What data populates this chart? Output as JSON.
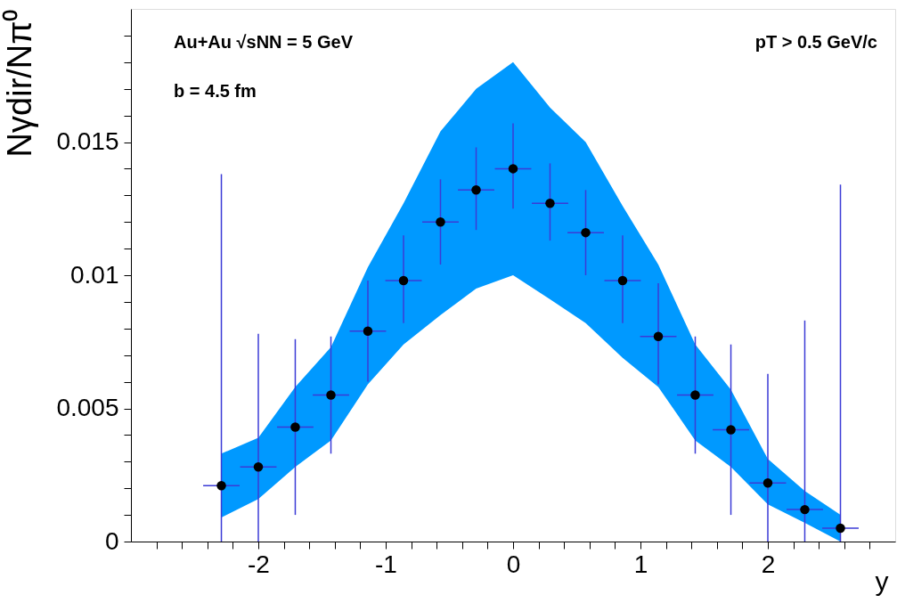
{
  "chart_data": {
    "type": "scatter",
    "xlabel": "y",
    "ylabel": "Nγdir/Nπ⁰",
    "annotations": [
      "Au+Au √sNN = 5 GeV",
      "b = 4.5 fm",
      "pT > 0.5 GeV/c"
    ],
    "x": [
      -2.29,
      -2,
      -1.71,
      -1.43,
      -1.14,
      -0.86,
      -0.57,
      -0.29,
      0,
      0.29,
      0.57,
      0.86,
      1.14,
      1.43,
      1.71,
      2,
      2.29,
      2.57
    ],
    "series": [
      {
        "color": "#000000",
        "lower": [
          0.0009,
          0.0016,
          0.0028,
          0.0038,
          0.0059,
          0.0074,
          0.0085,
          0.0095,
          0.01,
          0.0091,
          0.0082,
          0.0069,
          0.0058,
          0.0038,
          0.0028,
          0.0014,
          0.0007,
          0.0
        ],
        "upper": [
          0.0033,
          0.0039,
          0.0058,
          0.0073,
          0.0103,
          0.0127,
          0.0154,
          0.017,
          0.018,
          0.0163,
          0.015,
          0.0126,
          0.0104,
          0.0074,
          0.0057,
          0.0031,
          0.0019,
          0.001
        ],
        "values": [
          0.0021,
          0.0028,
          0.0043,
          0.0055,
          0.0079,
          0.0098,
          0.012,
          0.0132,
          0.014,
          0.0127,
          0.0116,
          0.0098,
          0.0077,
          0.0055,
          0.0042,
          0.0022,
          0.0012,
          0.0005
        ],
        "errors": [
          [
            0,
            0.0138
          ],
          [
            0,
            0.0078
          ],
          [
            0.001,
            0.0076
          ],
          [
            0.0033,
            0.0077
          ],
          [
            0.006,
            0.0098
          ],
          [
            0.0082,
            0.0115
          ],
          [
            0.0104,
            0.0136
          ],
          [
            0.0117,
            0.0148
          ],
          [
            0.0125,
            0.0157
          ],
          [
            0.0113,
            0.0142
          ],
          [
            0.01,
            0.0132
          ],
          [
            0.0082,
            0.0115
          ],
          [
            0.0059,
            0.0097
          ],
          [
            0.0033,
            0.0077
          ],
          [
            0.001,
            0.0074
          ],
          [
            0,
            0.0063
          ],
          [
            0,
            0.0083
          ],
          [
            0,
            0.0134
          ]
        ],
        "xerrors": [
          0.143,
          0.143,
          0.143,
          0.143,
          0.143,
          0.143,
          0.143,
          0.143,
          0.143,
          0.143,
          0.143,
          0.143,
          0.143,
          0.143,
          0.143,
          0.143,
          0.143,
          0.143
        ]
      }
    ],
    "xlim": [
      -3,
      3
    ],
    "xticks": [
      {
        "value": -2.8,
        "label": null
      },
      {
        "value": -2.6,
        "label": null
      },
      {
        "value": -2.4,
        "label": null
      },
      {
        "value": -2.2,
        "label": null
      },
      -2,
      {
        "value": -1.8,
        "label": null
      },
      {
        "value": -1.6,
        "label": null
      },
      {
        "value": -1.4,
        "label": null
      },
      {
        "value": -1.2,
        "label": null
      },
      -1,
      {
        "value": -0.8,
        "label": null
      },
      {
        "value": -0.6,
        "label": null
      },
      {
        "value": -0.4,
        "label": null
      },
      {
        "value": -0.2,
        "label": null
      },
      0,
      {
        "value": 0.2,
        "label": null
      },
      {
        "value": 0.4,
        "label": null
      },
      {
        "value": 0.6,
        "label": null
      },
      {
        "value": 0.8,
        "label": null
      },
      1,
      {
        "value": 1.2,
        "label": null
      },
      {
        "value": 1.4,
        "label": null
      },
      {
        "value": 1.6,
        "label": null
      },
      {
        "value": 1.8,
        "label": null
      },
      2,
      {
        "value": 2.2,
        "label": null
      },
      {
        "value": 2.4,
        "label": null
      },
      {
        "value": 2.6,
        "label": null
      },
      {
        "value": 2.8,
        "label": null
      }
    ],
    "ylim": [
      0,
      0.02
    ],
    "yticks": [
      0,
      {
        "value": 0.001,
        "label": null
      },
      {
        "value": 0.002,
        "label": null
      },
      {
        "value": 0.003,
        "label": null
      },
      {
        "value": 0.004,
        "label": null
      },
      0.005,
      {
        "value": 0.006,
        "label": null
      },
      {
        "value": 0.007,
        "label": null
      },
      {
        "value": 0.008,
        "label": null
      },
      {
        "value": 0.009,
        "label": null
      },
      0.01,
      {
        "value": 0.011,
        "label": null
      },
      {
        "value": 0.012,
        "label": null
      },
      {
        "value": 0.013,
        "label": null
      },
      {
        "value": 0.014,
        "label": null
      },
      0.015,
      {
        "value": 0.016,
        "label": null
      },
      {
        "value": 0.017,
        "label": null
      },
      {
        "value": 0.018,
        "label": null
      },
      {
        "value": 0.019,
        "label": null
      }
    ],
    "marker": "circle",
    "grid": false
  }
}
